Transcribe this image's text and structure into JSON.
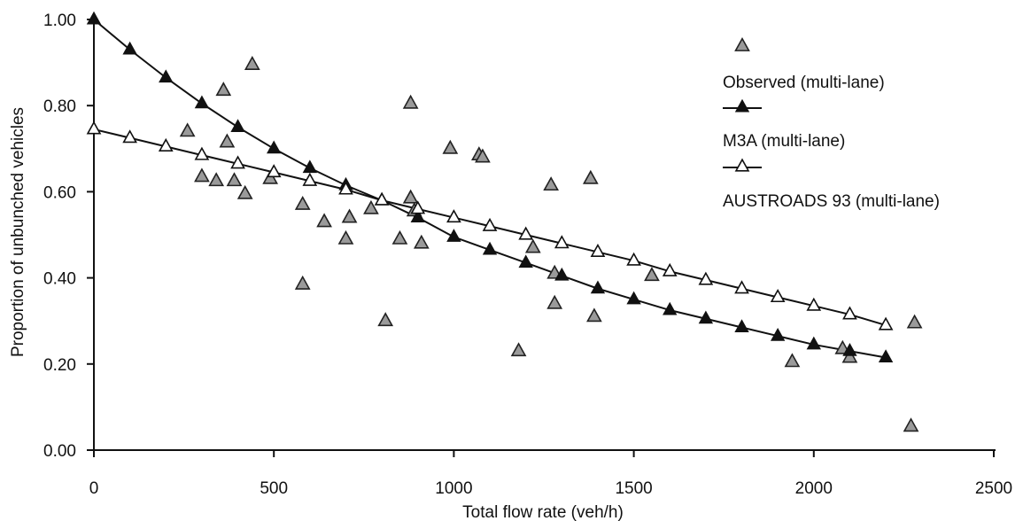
{
  "chart_data": {
    "type": "scatter",
    "title": "",
    "xlabel": "Total flow rate (veh/h)",
    "ylabel": "Proportion of unbunched vehicles",
    "xlim": [
      0,
      2500
    ],
    "ylim": [
      0,
      1.0
    ],
    "x_ticks": [
      0,
      500,
      1000,
      1500,
      2000,
      2500
    ],
    "x_tick_labels": [
      "0",
      "500",
      "1000",
      "1500",
      "2000",
      "2500"
    ],
    "y_ticks": [
      0,
      0.2,
      0.4,
      0.6,
      0.8,
      1.0
    ],
    "y_tick_labels": [
      "0.00",
      "0.20",
      "0.40",
      "0.60",
      "0.80",
      "1.00"
    ],
    "grid": false,
    "legend_position": "top-right",
    "series": [
      {
        "name": "Observed (multi-lane)",
        "style": "triangle-grey-points",
        "color": "#9a9a9a",
        "points": [
          [
            260,
            0.74
          ],
          [
            300,
            0.635
          ],
          [
            340,
            0.625
          ],
          [
            360,
            0.835
          ],
          [
            370,
            0.715
          ],
          [
            390,
            0.625
          ],
          [
            420,
            0.595
          ],
          [
            440,
            0.895
          ],
          [
            490,
            0.63
          ],
          [
            580,
            0.57
          ],
          [
            580,
            0.385
          ],
          [
            640,
            0.53
          ],
          [
            700,
            0.49
          ],
          [
            710,
            0.54
          ],
          [
            770,
            0.56
          ],
          [
            810,
            0.3
          ],
          [
            850,
            0.49
          ],
          [
            880,
            0.805
          ],
          [
            880,
            0.585
          ],
          [
            890,
            0.555
          ],
          [
            910,
            0.48
          ],
          [
            990,
            0.7
          ],
          [
            1070,
            0.685
          ],
          [
            1080,
            0.68
          ],
          [
            1180,
            0.23
          ],
          [
            1220,
            0.47
          ],
          [
            1270,
            0.615
          ],
          [
            1280,
            0.34
          ],
          [
            1280,
            0.41
          ],
          [
            1380,
            0.63
          ],
          [
            1390,
            0.31
          ],
          [
            1550,
            0.405
          ],
          [
            1940,
            0.205
          ],
          [
            2080,
            0.235
          ],
          [
            2100,
            0.215
          ],
          [
            2270,
            0.055
          ],
          [
            2280,
            0.295
          ]
        ]
      },
      {
        "name": "M3A (multi-lane)",
        "style": "filled-triangle-line",
        "color": "#111111",
        "x": [
          0,
          100,
          200,
          300,
          400,
          500,
          600,
          700,
          800,
          900,
          1000,
          1100,
          1200,
          1300,
          1400,
          1500,
          1600,
          1700,
          1800,
          1900,
          2000,
          2100,
          2200
        ],
        "values": [
          1.0,
          0.93,
          0.865,
          0.805,
          0.75,
          0.7,
          0.655,
          0.615,
          0.58,
          0.54,
          0.495,
          0.465,
          0.435,
          0.405,
          0.375,
          0.35,
          0.325,
          0.305,
          0.285,
          0.265,
          0.245,
          0.23,
          0.215
        ]
      },
      {
        "name": "AUSTROADS 93 (multi-lane)",
        "style": "open-triangle-line",
        "color": "#111111",
        "x": [
          0,
          100,
          200,
          300,
          400,
          500,
          600,
          700,
          800,
          900,
          1000,
          1100,
          1200,
          1300,
          1400,
          1500,
          1600,
          1700,
          1800,
          1900,
          2000,
          2100,
          2200
        ],
        "values": [
          0.745,
          0.725,
          0.705,
          0.685,
          0.665,
          0.645,
          0.625,
          0.605,
          0.58,
          0.56,
          0.54,
          0.52,
          0.5,
          0.48,
          0.46,
          0.44,
          0.415,
          0.395,
          0.375,
          0.355,
          0.335,
          0.315,
          0.29
        ]
      }
    ]
  }
}
